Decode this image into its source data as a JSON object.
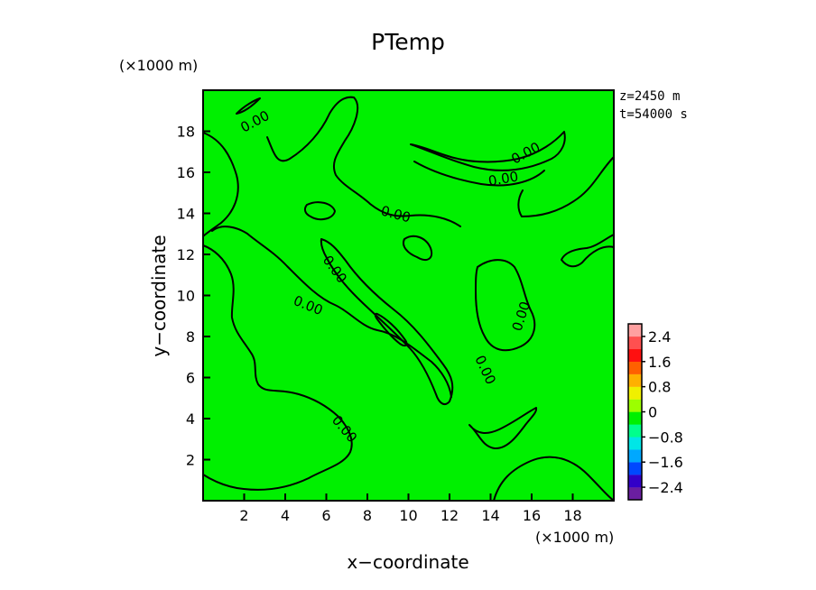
{
  "chart_data": {
    "type": "heatmap",
    "title": "PTemp",
    "xlabel": "x−coordinate",
    "ylabel": "y−coordinate",
    "x_unit_note": "(×1000 m)",
    "y_unit_note": "(×1000 m)",
    "z_label": "z=2450 m",
    "t_label": "t=54000 s",
    "xlim": [
      0,
      20
    ],
    "ylim": [
      0,
      20
    ],
    "x_ticks": [
      "2",
      "4",
      "6",
      "8",
      "10",
      "12",
      "14",
      "16",
      "18"
    ],
    "y_ticks": [
      "2",
      "4",
      "6",
      "8",
      "10",
      "12",
      "14",
      "16",
      "18"
    ],
    "field_value": 0,
    "contour_levels": [
      0
    ],
    "contour_labels": [
      "0.00",
      "0.00",
      "0.00",
      "0.00",
      "0.00",
      "0.00",
      "0.00",
      "0.00",
      "0.00"
    ],
    "colorbar": {
      "range": [
        -2.8,
        2.8
      ],
      "ticks": [
        "2.4",
        "1.6",
        "0.8",
        "0",
        "−0.8",
        "−1.6",
        "−2.4"
      ],
      "colors": [
        "#6a1ea0",
        "#3200c8",
        "#0048ff",
        "#00a8ff",
        "#00e6e6",
        "#00ff8c",
        "#00f000",
        "#9cff00",
        "#f0f000",
        "#ffb000",
        "#ff6000",
        "#ff1010",
        "#ff5050",
        "#ffa0a0"
      ]
    }
  }
}
